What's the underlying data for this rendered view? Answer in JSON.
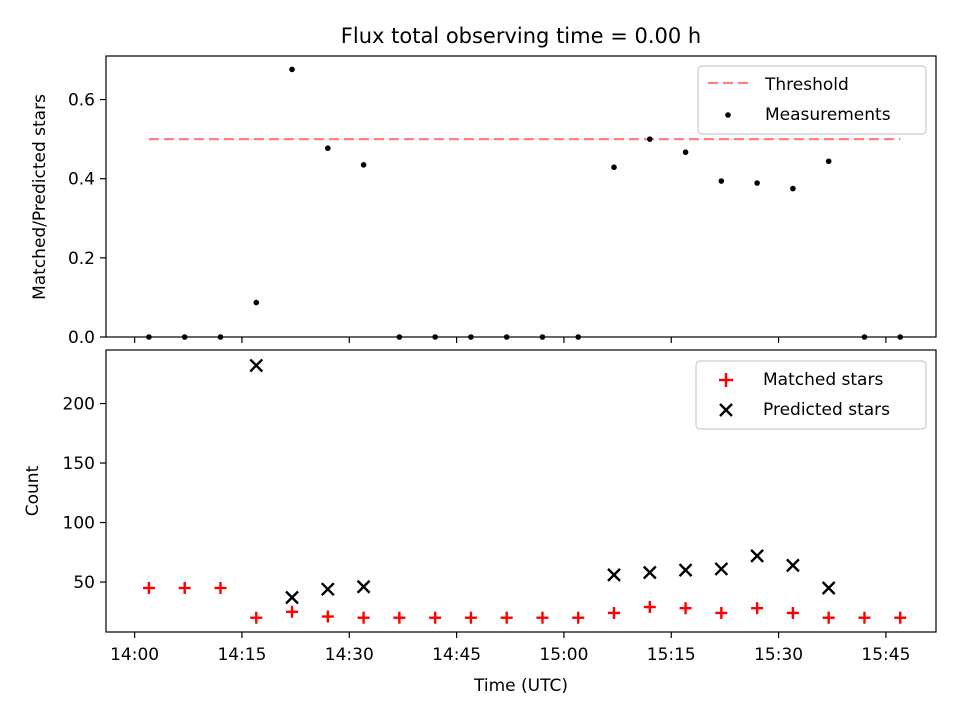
{
  "chart_data": [
    {
      "type": "scatter",
      "title": "Flux total observing time = 0.00 h",
      "xlabel": "",
      "ylabel": "Matched/Predicted stars",
      "xlim_minutes_of_day": [
        836,
        952
      ],
      "ylim": [
        0,
        0.71
      ],
      "yticks": [
        0.0,
        0.2,
        0.4,
        0.6
      ],
      "ytick_labels": [
        "0.0",
        "0.2",
        "0.4",
        "0.6"
      ],
      "legend": {
        "position": "top-right",
        "entries": [
          "Threshold",
          "Measurements"
        ]
      },
      "threshold": {
        "name": "Threshold",
        "value": 0.5,
        "x_start": "14:02",
        "x_end": "15:47",
        "color": "#ff7f7f",
        "style": "dashed"
      },
      "series": [
        {
          "name": "Measurements",
          "color": "#000000",
          "marker": "dot",
          "x": [
            "14:02",
            "14:07",
            "14:12",
            "14:17",
            "14:22",
            "14:27",
            "14:32",
            "14:37",
            "14:42",
            "14:47",
            "14:52",
            "14:57",
            "15:02",
            "15:07",
            "15:12",
            "15:17",
            "15:22",
            "15:27",
            "15:32",
            "15:37",
            "15:42",
            "15:47"
          ],
          "y": [
            0,
            0,
            0,
            0.087,
            0.676,
            0.477,
            0.435,
            0,
            0,
            0,
            0,
            0,
            0,
            0.429,
            0.5,
            0.467,
            0.394,
            0.389,
            0.375,
            0.444,
            0,
            0
          ]
        }
      ]
    },
    {
      "type": "scatter",
      "title": "",
      "xlabel": "Time (UTC)",
      "ylabel": "Count",
      "xlim_minutes_of_day": [
        836,
        952
      ],
      "ylim": [
        8,
        245
      ],
      "yticks": [
        50,
        100,
        150,
        200
      ],
      "ytick_labels": [
        "50",
        "100",
        "150",
        "200"
      ],
      "xtick_labels": [
        "14:00",
        "14:15",
        "14:30",
        "14:45",
        "15:00",
        "15:15",
        "15:30",
        "15:45"
      ],
      "legend": {
        "position": "top-right",
        "entries": [
          "Matched stars",
          "Predicted stars"
        ]
      },
      "series": [
        {
          "name": "Matched stars",
          "color": "#ff0000",
          "marker": "plus",
          "x": [
            "14:02",
            "14:07",
            "14:12",
            "14:17",
            "14:22",
            "14:27",
            "14:32",
            "14:37",
            "14:42",
            "14:47",
            "14:52",
            "14:57",
            "15:02",
            "15:07",
            "15:12",
            "15:17",
            "15:22",
            "15:27",
            "15:32",
            "15:37",
            "15:42",
            "15:47"
          ],
          "y": [
            45,
            45,
            45,
            20,
            25,
            21,
            20,
            20,
            20,
            20,
            20,
            20,
            20,
            24,
            29,
            28,
            24,
            28,
            24,
            20,
            20,
            20
          ]
        },
        {
          "name": "Predicted stars",
          "color": "#000000",
          "marker": "x",
          "x": [
            "14:17",
            "14:22",
            "14:27",
            "14:32",
            "15:07",
            "15:12",
            "15:17",
            "15:22",
            "15:27",
            "15:32",
            "15:37"
          ],
          "y": [
            232,
            37,
            44,
            46,
            56,
            58,
            60,
            61,
            72,
            64,
            45
          ]
        }
      ]
    }
  ]
}
